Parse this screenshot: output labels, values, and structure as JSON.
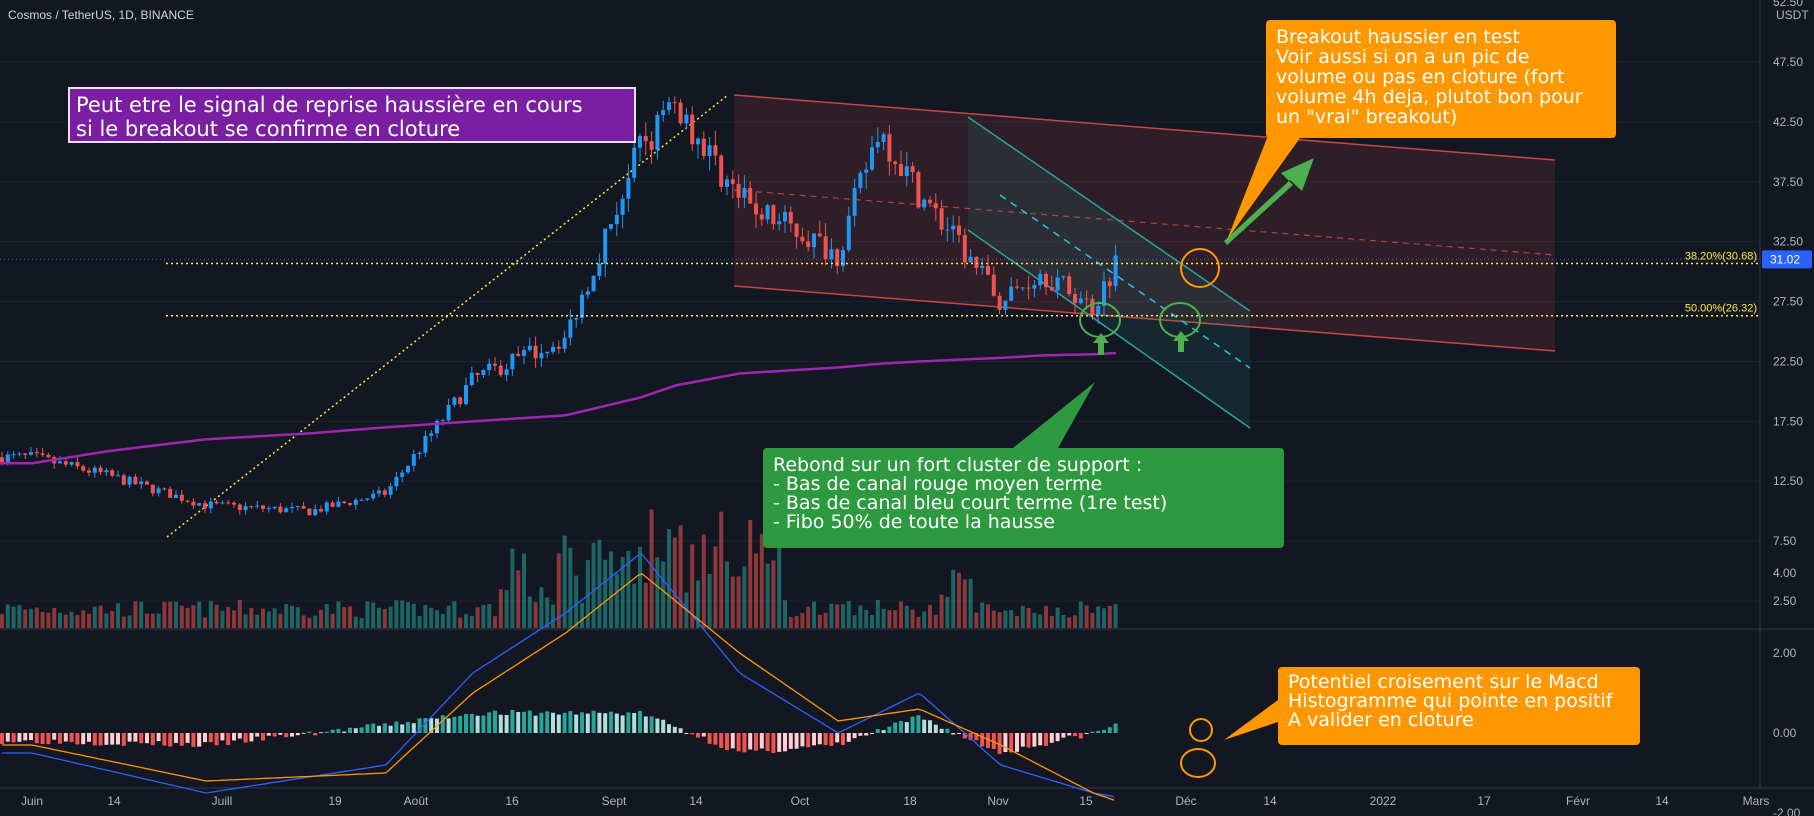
{
  "header": {
    "symbol": "Cosmos / TetherUS, 1D, BINANCE"
  },
  "price_axis": {
    "unit": "USDT",
    "top_partial": "52.50",
    "labels": [
      "47.50",
      "42.50",
      "37.50",
      "32.50",
      "27.50",
      "22.50",
      "17.50",
      "12.50",
      "7.50",
      "2.50"
    ],
    "current_price": "31.02",
    "current_color": "#2962ff"
  },
  "macd_axis": {
    "labels": [
      "4.00",
      "2.00",
      "0.00",
      "-2.00"
    ]
  },
  "time_axis": {
    "labels": [
      "Juin",
      "14",
      "Juill",
      "19",
      "Août",
      "16",
      "Sept",
      "14",
      "Oct",
      "18",
      "Nov",
      "15",
      "Déc",
      "14",
      "2022",
      "17",
      "Févr",
      "14",
      "Mars"
    ]
  },
  "fibo": {
    "level_38": "38.20%(30.68)",
    "level_50": "50.00%(26.32)"
  },
  "annotations": {
    "purple_note": "Peut etre le signal de reprise haussière en cours\nsi le breakout se confirme en cloture",
    "orange_note_top": "Breakout haussier en test\nVoir aussi si on a un pic de\nvolume ou pas en cloture (fort\nvolume 4h deja, plutot bon pour\nun \"vrai\" breakout)",
    "green_note": "Rebond sur un fort cluster de support :\n- Bas de canal rouge moyen terme\n- Bas de canal bleu court terme (1re test)\n- Fibo 50% de toute la hausse",
    "orange_note_macd": "Potentiel croisement sur le Macd\nHistogramme qui pointe en positif\nA valider en cloture"
  },
  "colors": {
    "background": "#131722",
    "up_candle": "#2196f3",
    "down_candle": "#ef5350",
    "volume_up": "#26a69a",
    "volume_down": "#ef5350",
    "ma_line": "#9c27b0",
    "fibo_line": "#ffeb3b",
    "macd_line": "#2962ff",
    "signal_line": "#ff9800",
    "red_channel": "#ef5350",
    "blue_channel": "#26a69a",
    "annotation_purple": "#7b1fa2",
    "annotation_orange": "#ff9800",
    "annotation_green": "#2e9a3f"
  },
  "chart_data": [
    {
      "type": "candlestick",
      "title": "Cosmos / TetherUS, 1D, BINANCE",
      "ylabel": "USDT",
      "ylim": [
        0,
        52.5
      ],
      "description_series": "daily closes (approx.)",
      "x": [
        "2021-06-01",
        "2021-06-14",
        "2021-07-01",
        "2021-07-19",
        "2021-08-01",
        "2021-08-16",
        "2021-09-01",
        "2021-09-14",
        "2021-09-20",
        "2021-10-01",
        "2021-10-18",
        "2021-10-25",
        "2021-11-01",
        "2021-11-15",
        "2021-11-22",
        "2021-12-01",
        "2021-12-05"
      ],
      "series": [
        {
          "name": "close",
          "values": [
            14.5,
            13.0,
            10.5,
            10.0,
            11.5,
            21.0,
            24.5,
            40.5,
            44.0,
            36.0,
            31.5,
            42.0,
            36.5,
            27.5,
            30.0,
            27.0,
            31.0
          ]
        },
        {
          "name": "MA",
          "values": [
            14.0,
            15.0,
            16.0,
            16.5,
            17.0,
            17.5,
            18.0,
            19.5,
            20.5,
            21.5,
            22.0,
            22.3,
            22.5,
            22.8,
            23.0,
            23.1,
            23.2
          ]
        }
      ],
      "fibo_levels": [
        30.68,
        26.32
      ]
    },
    {
      "type": "bar",
      "title": "",
      "description_series": "MACD histogram (approx.)",
      "ylim": [
        -3,
        5
      ],
      "x": [
        "2021-06-01",
        "2021-07-01",
        "2021-08-01",
        "2021-08-16",
        "2021-09-01",
        "2021-09-14",
        "2021-10-01",
        "2021-10-18",
        "2021-11-01",
        "2021-11-15",
        "2021-12-01",
        "2021-12-05"
      ],
      "series": [
        {
          "name": "MACD",
          "values": [
            -0.5,
            -1.5,
            -0.8,
            1.5,
            3.0,
            4.5,
            1.5,
            0.0,
            1.0,
            -0.8,
            -1.5,
            -1.6
          ]
        },
        {
          "name": "Signal",
          "values": [
            -0.3,
            -1.2,
            -1.0,
            1.0,
            2.5,
            4.0,
            2.0,
            0.3,
            0.6,
            -0.3,
            -1.5,
            -1.7
          ]
        },
        {
          "name": "Histogram",
          "values": [
            -0.2,
            -0.3,
            0.2,
            0.5,
            0.5,
            0.5,
            -0.5,
            -0.3,
            0.4,
            -0.5,
            0.0,
            0.2
          ]
        }
      ]
    }
  ]
}
